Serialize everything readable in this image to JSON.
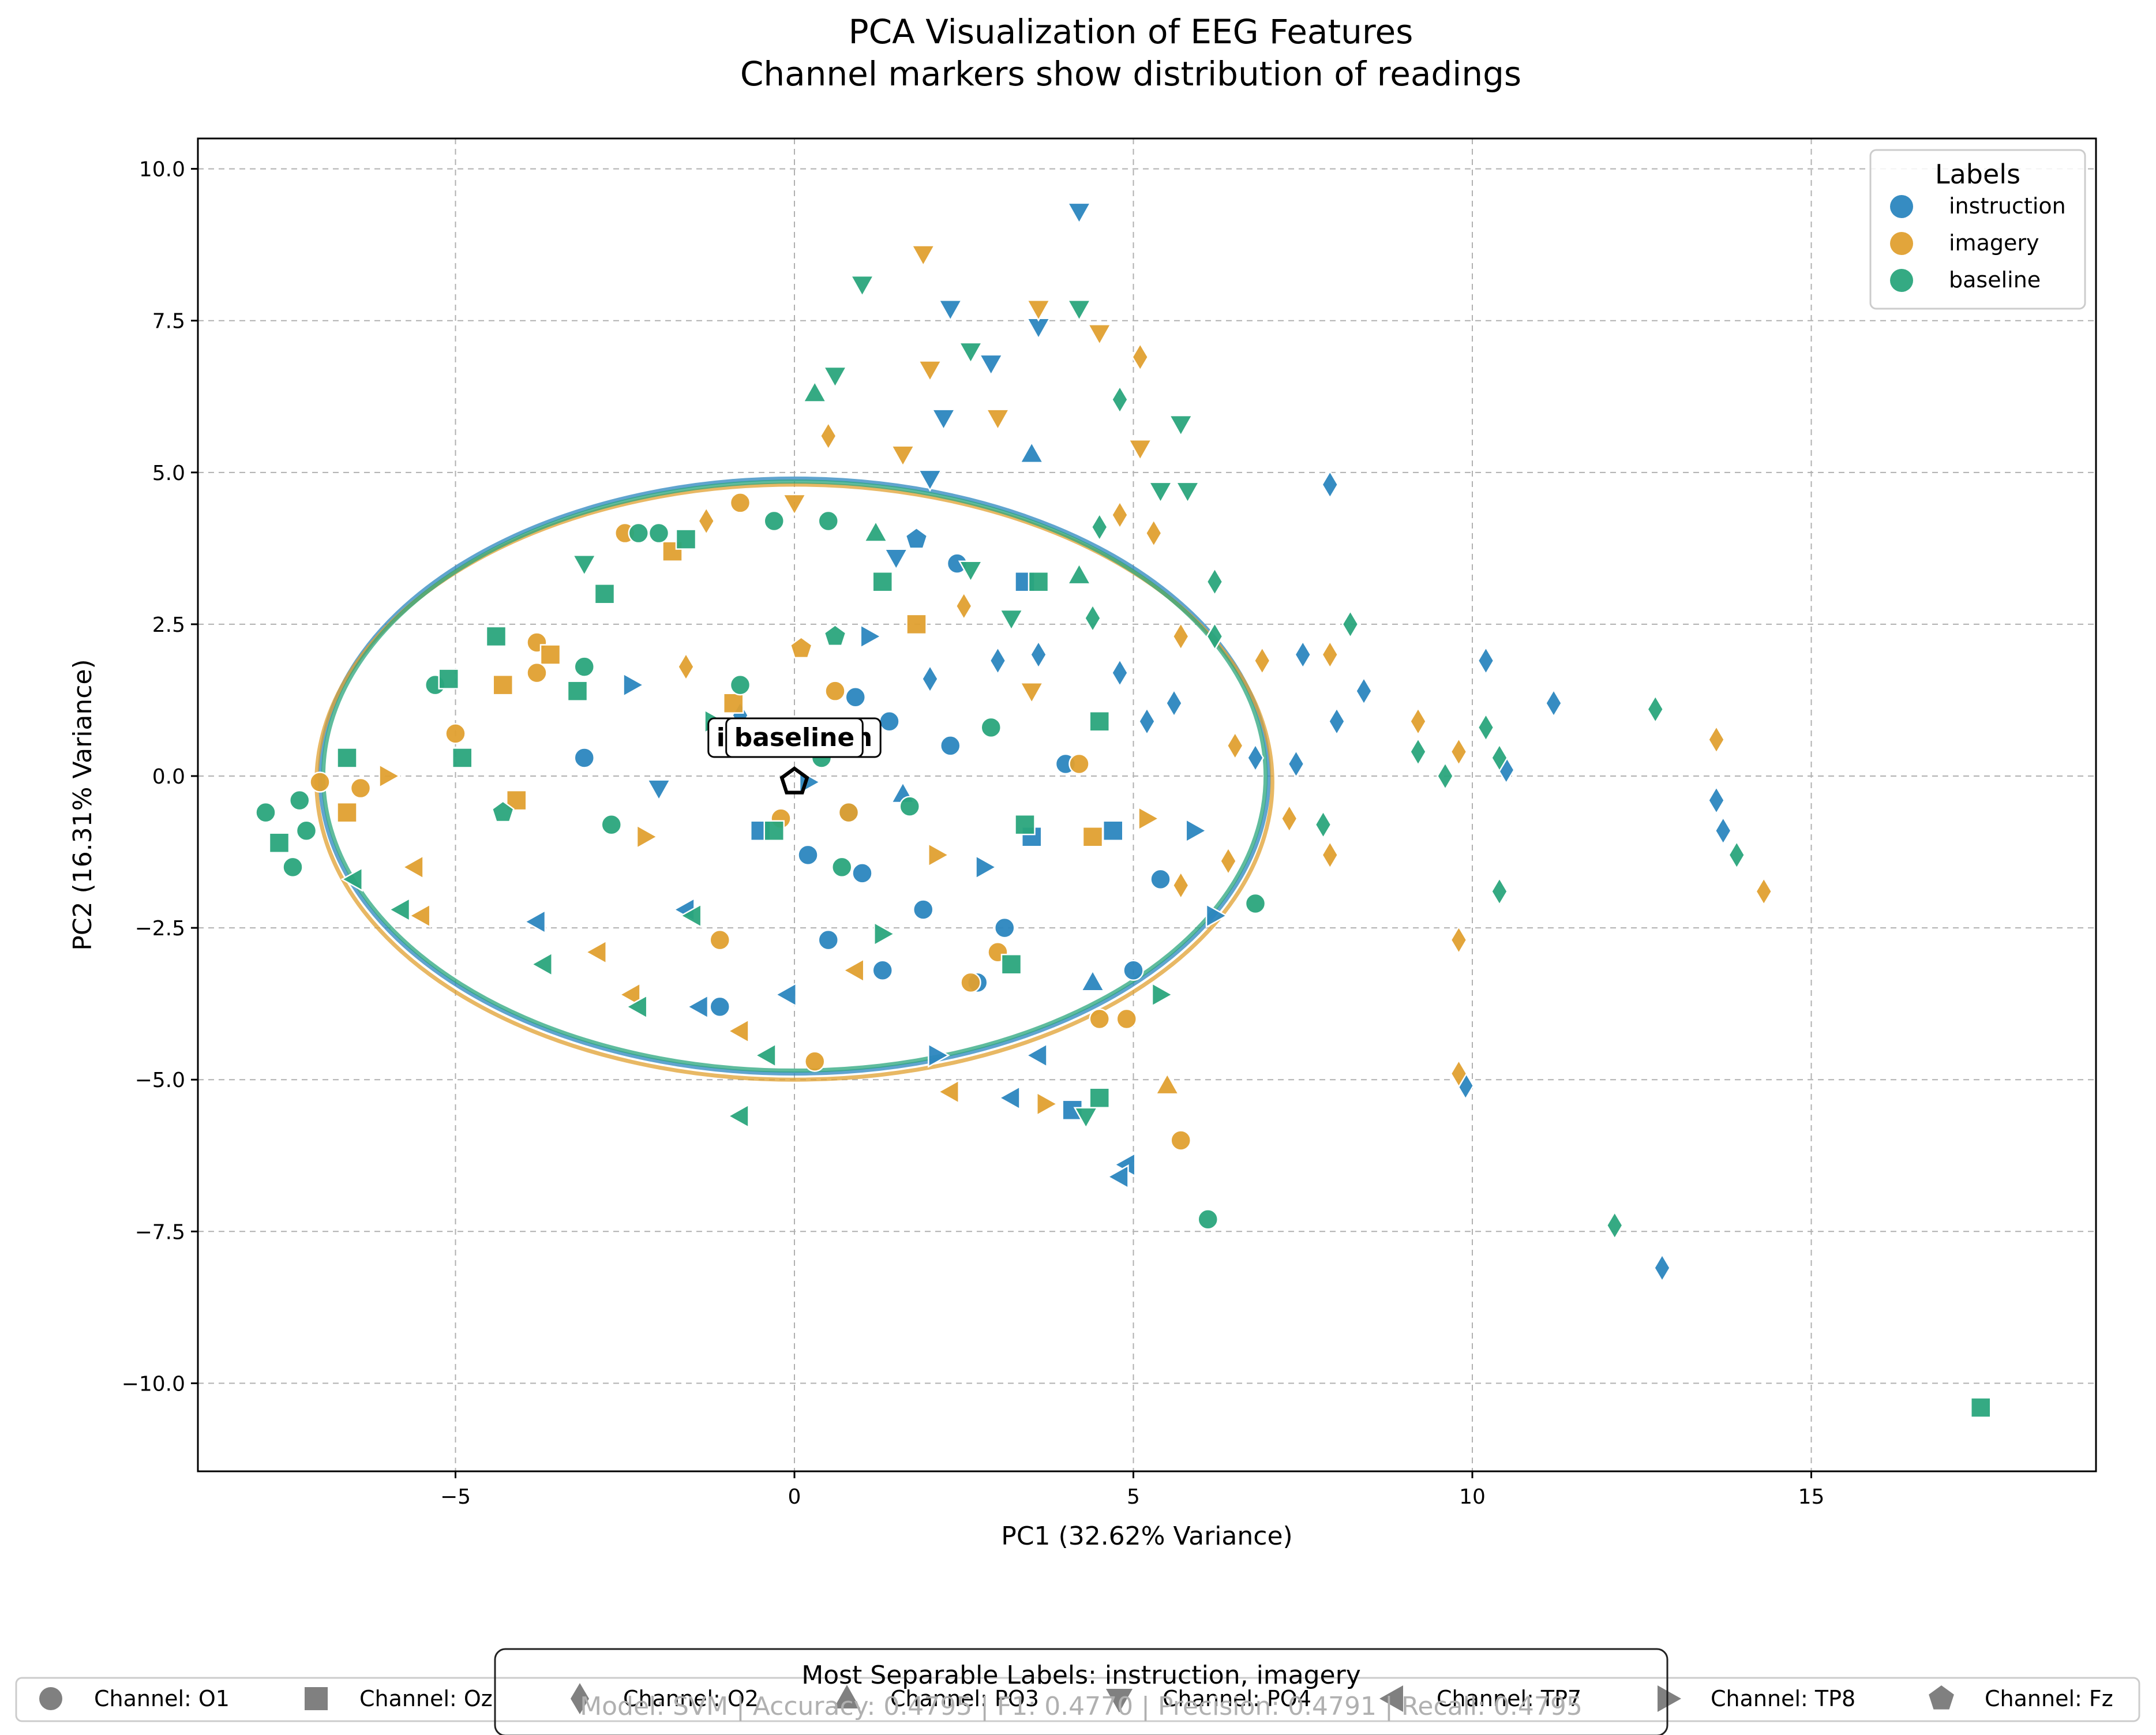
{
  "chart_data": {
    "type": "scatter",
    "title": "PCA Visualization of EEG Features",
    "subtitle": "Channel markers show distribution of readings",
    "xlabel": "PC1 (32.62% Variance)",
    "ylabel": "PC2 (16.31% Variance)",
    "xlim": [
      -9.0,
      19.0
    ],
    "ylim": [
      -11.5,
      10.5
    ],
    "xticks": [
      -5,
      0,
      5,
      10,
      15
    ],
    "xtick_labels": [
      "−5",
      "0",
      "5",
      "10",
      "15"
    ],
    "yticks": [
      -10,
      -7.5,
      -5,
      -2.5,
      0,
      2.5,
      5,
      7.5,
      10
    ],
    "ytick_labels": [
      "−10.0",
      "−7.5",
      "−5.0",
      "−2.5",
      "0.0",
      "2.5",
      "5.0",
      "7.5",
      "10.0"
    ],
    "grid": true,
    "legend_title": "Labels",
    "legend_position": "top-right",
    "series": [
      {
        "name": "instruction",
        "color": "#2b86bf",
        "points": [
          [
            4.2,
            9.3,
            "PO4"
          ],
          [
            2.3,
            7.7,
            "PO4"
          ],
          [
            3.6,
            7.4,
            "PO4"
          ],
          [
            2.9,
            6.8,
            "PO4"
          ],
          [
            2.2,
            5.9,
            "PO4"
          ],
          [
            3.5,
            5.3,
            "PO3"
          ],
          [
            2.0,
            4.9,
            "PO4"
          ],
          [
            1.8,
            3.9,
            "Fz"
          ],
          [
            2.4,
            3.5,
            "O1"
          ],
          [
            3.4,
            3.2,
            "Oz"
          ],
          [
            1.1,
            2.3,
            "TP8"
          ],
          [
            2.0,
            1.6,
            "O2"
          ],
          [
            3.6,
            2.0,
            "O2"
          ],
          [
            4.8,
            1.7,
            "O2"
          ],
          [
            5.2,
            0.9,
            "O2"
          ],
          [
            5.6,
            1.2,
            "O2"
          ],
          [
            6.8,
            0.3,
            "O2"
          ],
          [
            7.5,
            2.0,
            "O2"
          ],
          [
            7.9,
            4.8,
            "O2"
          ],
          [
            8.0,
            0.9,
            "O2"
          ],
          [
            8.4,
            1.4,
            "O2"
          ],
          [
            7.4,
            0.2,
            "O2"
          ],
          [
            10.2,
            1.9,
            "O2"
          ],
          [
            11.2,
            1.2,
            "O2"
          ],
          [
            10.5,
            0.1,
            "O2"
          ],
          [
            13.6,
            -0.4,
            "O2"
          ],
          [
            13.7,
            -0.9,
            "O2"
          ],
          [
            12.8,
            -8.1,
            "O2"
          ],
          [
            9.9,
            -5.1,
            "O2"
          ],
          [
            5.9,
            -0.9,
            "TP8"
          ],
          [
            6.2,
            -2.3,
            "TP8"
          ],
          [
            5.0,
            -3.2,
            "O1"
          ],
          [
            4.4,
            -3.4,
            "PO3"
          ],
          [
            4.1,
            -5.5,
            "Oz"
          ],
          [
            3.6,
            -4.6,
            "TP7"
          ],
          [
            3.2,
            -5.3,
            "TP7"
          ],
          [
            4.9,
            -6.4,
            "TP7"
          ],
          [
            4.8,
            -6.6,
            "TP7"
          ],
          [
            -1.1,
            -3.8,
            "O1"
          ],
          [
            -1.4,
            -3.8,
            "TP7"
          ],
          [
            0.5,
            -2.7,
            "O1"
          ],
          [
            1.3,
            -3.2,
            "O1"
          ],
          [
            2.7,
            -3.4,
            "O1"
          ],
          [
            0.2,
            -1.3,
            "O1"
          ],
          [
            1.0,
            -1.6,
            "O1"
          ],
          [
            -0.5,
            -0.9,
            "Oz"
          ],
          [
            -0.3,
            0.5,
            "O1"
          ],
          [
            0.8,
            -0.6,
            "O1"
          ],
          [
            -3.1,
            0.3,
            "O1"
          ],
          [
            -2.4,
            1.5,
            "TP8"
          ],
          [
            -1.6,
            -2.2,
            "TP7"
          ],
          [
            -3.8,
            -2.4,
            "TP7"
          ],
          [
            1.6,
            -0.3,
            "PO3"
          ],
          [
            2.3,
            0.5,
            "O1"
          ],
          [
            3.5,
            -1.0,
            "Oz"
          ],
          [
            4.7,
            -0.9,
            "Oz"
          ],
          [
            1.9,
            -2.2,
            "O1"
          ],
          [
            2.8,
            -1.5,
            "TP8"
          ],
          [
            0.9,
            1.3,
            "O1"
          ],
          [
            -0.8,
            1.0,
            "O2"
          ],
          [
            1.4,
            0.9,
            "O1"
          ],
          [
            0.2,
            -0.1,
            "TP8"
          ],
          [
            -2.0,
            -0.2,
            "PO4"
          ],
          [
            3.1,
            -2.5,
            "O1"
          ],
          [
            -0.1,
            -3.6,
            "TP7"
          ],
          [
            2.1,
            -4.6,
            "TP8"
          ],
          [
            5.4,
            -1.7,
            "O1"
          ],
          [
            4.0,
            0.2,
            "O1"
          ],
          [
            3.0,
            1.9,
            "O2"
          ],
          [
            1.5,
            3.6,
            "PO4"
          ]
        ]
      },
      {
        "name": "imagery",
        "color": "#e0a030",
        "points": [
          [
            1.9,
            8.6,
            "PO4"
          ],
          [
            3.6,
            7.7,
            "PO4"
          ],
          [
            5.1,
            6.9,
            "O2"
          ],
          [
            4.5,
            7.3,
            "PO4"
          ],
          [
            2.0,
            6.7,
            "PO4"
          ],
          [
            0.5,
            5.6,
            "O2"
          ],
          [
            1.6,
            5.3,
            "PO4"
          ],
          [
            3.0,
            5.9,
            "PO4"
          ],
          [
            5.1,
            5.4,
            "PO4"
          ],
          [
            4.8,
            4.3,
            "O2"
          ],
          [
            5.3,
            4.0,
            "O2"
          ],
          [
            -0.8,
            4.5,
            "O1"
          ],
          [
            0.0,
            4.5,
            "PO4"
          ],
          [
            -1.3,
            4.2,
            "O2"
          ],
          [
            -2.5,
            4.0,
            "O1"
          ],
          [
            -1.8,
            3.7,
            "Oz"
          ],
          [
            -3.8,
            2.2,
            "O1"
          ],
          [
            -3.6,
            2.0,
            "Oz"
          ],
          [
            -4.3,
            1.5,
            "Oz"
          ],
          [
            -3.8,
            1.7,
            "O1"
          ],
          [
            -5.0,
            0.7,
            "O1"
          ],
          [
            -6.0,
            0.0,
            "TP8"
          ],
          [
            -6.4,
            -0.2,
            "O1"
          ],
          [
            -7.0,
            -0.1,
            "O1"
          ],
          [
            -6.6,
            -0.6,
            "Oz"
          ],
          [
            -5.6,
            -1.5,
            "TP7"
          ],
          [
            -5.5,
            -2.3,
            "TP7"
          ],
          [
            -2.9,
            -2.9,
            "TP7"
          ],
          [
            -2.4,
            -3.6,
            "TP7"
          ],
          [
            -0.8,
            -4.2,
            "TP7"
          ],
          [
            0.3,
            -4.7,
            "O1"
          ],
          [
            2.3,
            -5.2,
            "TP7"
          ],
          [
            3.7,
            -5.4,
            "TP8"
          ],
          [
            4.5,
            -4.0,
            "O1"
          ],
          [
            4.9,
            -4.0,
            "O1"
          ],
          [
            5.7,
            -6.0,
            "O1"
          ],
          [
            5.5,
            -5.1,
            "PO3"
          ],
          [
            6.4,
            -1.4,
            "O2"
          ],
          [
            5.7,
            -1.8,
            "O2"
          ],
          [
            5.2,
            -0.7,
            "TP8"
          ],
          [
            6.5,
            0.5,
            "O2"
          ],
          [
            7.3,
            -0.7,
            "O2"
          ],
          [
            7.9,
            2.0,
            "O2"
          ],
          [
            7.9,
            -1.3,
            "O2"
          ],
          [
            9.2,
            0.9,
            "O2"
          ],
          [
            9.8,
            0.4,
            "O2"
          ],
          [
            9.8,
            -2.7,
            "O2"
          ],
          [
            9.8,
            -4.9,
            "O2"
          ],
          [
            13.6,
            0.6,
            "O2"
          ],
          [
            14.3,
            -1.9,
            "O2"
          ],
          [
            5.7,
            2.3,
            "O2"
          ],
          [
            6.9,
            1.9,
            "O2"
          ],
          [
            4.2,
            0.2,
            "O1"
          ],
          [
            3.0,
            -2.9,
            "O1"
          ],
          [
            2.1,
            -1.3,
            "TP8"
          ],
          [
            0.8,
            -0.6,
            "O1"
          ],
          [
            -0.2,
            -0.7,
            "O1"
          ],
          [
            0.6,
            1.4,
            "O1"
          ],
          [
            -0.9,
            1.2,
            "Oz"
          ],
          [
            -1.6,
            1.8,
            "O2"
          ],
          [
            0.1,
            2.1,
            "Fz"
          ],
          [
            1.8,
            2.5,
            "Oz"
          ],
          [
            2.5,
            2.8,
            "O2"
          ],
          [
            3.5,
            1.4,
            "PO4"
          ],
          [
            4.4,
            -1.0,
            "Oz"
          ],
          [
            2.6,
            -3.4,
            "O1"
          ],
          [
            -1.1,
            -2.7,
            "O1"
          ],
          [
            0.9,
            -3.2,
            "TP7"
          ],
          [
            -2.2,
            -1.0,
            "TP8"
          ],
          [
            -4.1,
            -0.4,
            "Oz"
          ]
        ]
      },
      {
        "name": "baseline",
        "color": "#2aa57c",
        "points": [
          [
            1.0,
            8.1,
            "PO4"
          ],
          [
            0.3,
            6.3,
            "PO3"
          ],
          [
            0.6,
            6.6,
            "PO4"
          ],
          [
            2.6,
            7.0,
            "PO4"
          ],
          [
            4.2,
            7.7,
            "PO4"
          ],
          [
            4.8,
            6.2,
            "O2"
          ],
          [
            5.7,
            5.8,
            "PO4"
          ],
          [
            5.8,
            4.7,
            "PO4"
          ],
          [
            5.4,
            4.7,
            "PO4"
          ],
          [
            4.5,
            4.1,
            "O2"
          ],
          [
            4.2,
            3.3,
            "PO3"
          ],
          [
            3.6,
            3.2,
            "Oz"
          ],
          [
            4.4,
            2.6,
            "O2"
          ],
          [
            6.2,
            3.2,
            "O2"
          ],
          [
            6.2,
            2.3,
            "O2"
          ],
          [
            8.2,
            2.5,
            "O2"
          ],
          [
            10.2,
            0.8,
            "O2"
          ],
          [
            10.4,
            0.3,
            "O2"
          ],
          [
            9.2,
            0.4,
            "O2"
          ],
          [
            9.6,
            0.0,
            "O2"
          ],
          [
            7.8,
            -0.8,
            "O2"
          ],
          [
            10.4,
            -1.9,
            "O2"
          ],
          [
            12.7,
            1.1,
            "O2"
          ],
          [
            13.9,
            -1.3,
            "O2"
          ],
          [
            12.1,
            -7.4,
            "O2"
          ],
          [
            17.5,
            -10.4,
            "Oz"
          ],
          [
            6.1,
            -7.3,
            "O1"
          ],
          [
            6.8,
            -2.1,
            "O1"
          ],
          [
            5.4,
            -3.6,
            "TP8"
          ],
          [
            4.5,
            -5.3,
            "Oz"
          ],
          [
            4.3,
            -5.6,
            "PO4"
          ],
          [
            -0.8,
            -5.6,
            "TP7"
          ],
          [
            -0.4,
            -4.6,
            "TP7"
          ],
          [
            -2.3,
            -3.8,
            "TP7"
          ],
          [
            -3.7,
            -3.1,
            "TP7"
          ],
          [
            -5.8,
            -2.2,
            "TP7"
          ],
          [
            -6.5,
            -1.7,
            "TP7"
          ],
          [
            -7.2,
            -0.9,
            "O1"
          ],
          [
            -7.4,
            -1.5,
            "O1"
          ],
          [
            -7.8,
            -0.6,
            "O1"
          ],
          [
            -7.6,
            -1.1,
            "Oz"
          ],
          [
            -7.3,
            -0.4,
            "O1"
          ],
          [
            -6.6,
            0.3,
            "Oz"
          ],
          [
            -5.3,
            1.5,
            "O1"
          ],
          [
            -5.1,
            1.6,
            "Oz"
          ],
          [
            -4.9,
            0.3,
            "Oz"
          ],
          [
            -4.4,
            2.3,
            "Oz"
          ],
          [
            -3.2,
            1.4,
            "Oz"
          ],
          [
            -3.1,
            1.8,
            "O1"
          ],
          [
            -2.8,
            3.0,
            "Oz"
          ],
          [
            -3.1,
            3.5,
            "PO4"
          ],
          [
            -2.3,
            4.0,
            "O1"
          ],
          [
            -2.0,
            4.0,
            "O1"
          ],
          [
            -1.6,
            3.9,
            "Oz"
          ],
          [
            -0.3,
            4.2,
            "O1"
          ],
          [
            0.5,
            4.2,
            "O1"
          ],
          [
            1.2,
            4.0,
            "PO3"
          ],
          [
            2.6,
            3.4,
            "PO4"
          ],
          [
            1.3,
            3.2,
            "Oz"
          ],
          [
            3.2,
            2.6,
            "PO4"
          ],
          [
            0.6,
            2.3,
            "Fz"
          ],
          [
            -0.8,
            1.5,
            "O1"
          ],
          [
            -1.2,
            0.9,
            "TP8"
          ],
          [
            0.4,
            0.3,
            "O1"
          ],
          [
            1.7,
            -0.5,
            "O1"
          ],
          [
            2.9,
            0.8,
            "O1"
          ],
          [
            4.5,
            0.9,
            "Oz"
          ],
          [
            3.4,
            -0.8,
            "Oz"
          ],
          [
            1.3,
            -2.6,
            "TP8"
          ],
          [
            3.2,
            -3.1,
            "Oz"
          ],
          [
            0.7,
            -1.5,
            "O1"
          ],
          [
            -1.5,
            -2.3,
            "TP7"
          ],
          [
            -2.7,
            -0.8,
            "O1"
          ],
          [
            -4.3,
            -0.6,
            "Fz"
          ],
          [
            -0.3,
            -0.9,
            "Oz"
          ]
        ]
      }
    ],
    "ellipses": [
      {
        "label": "instruction",
        "center": [
          0.0,
          0.0
        ],
        "width": 14.0,
        "height": 9.8,
        "color": "#2b86bf"
      },
      {
        "label": "imagery",
        "center": [
          0.0,
          -0.1
        ],
        "width": 14.1,
        "height": 9.8,
        "color": "#e0a030"
      },
      {
        "label": "baseline",
        "center": [
          0.0,
          0.0
        ],
        "width": 13.9,
        "height": 9.7,
        "color": "#2aa57c"
      }
    ],
    "centroid_annotations": [
      {
        "label": "instruction",
        "x": 0.0,
        "y": 0.0
      },
      {
        "label": "imagery",
        "x": 0.0,
        "y": 0.0
      },
      {
        "label": "baseline",
        "x": 0.0,
        "y": 0.0
      }
    ]
  },
  "info_box": {
    "line1": "Most Separable Labels: instruction, imagery",
    "line2": "Model: SVM | Accuracy: 0.4795 | F1: 0.4770 | Precision: 0.4791 | Recall: 0.4795"
  },
  "channel_legend": [
    {
      "label": "Channel: O1",
      "marker": "circle-marker-icon"
    },
    {
      "label": "Channel: Oz",
      "marker": "square-marker-icon"
    },
    {
      "label": "Channel: O2",
      "marker": "diamond-marker-icon"
    },
    {
      "label": "Channel: PO3",
      "marker": "triangle-up-marker-icon"
    },
    {
      "label": "Channel: PO4",
      "marker": "triangle-down-marker-icon"
    },
    {
      "label": "Channel: TP7",
      "marker": "triangle-left-marker-icon"
    },
    {
      "label": "Channel: TP8",
      "marker": "triangle-right-marker-icon"
    },
    {
      "label": "Channel: Fz",
      "marker": "pentagon-marker-icon"
    }
  ],
  "marker_color_gray": "#808080"
}
